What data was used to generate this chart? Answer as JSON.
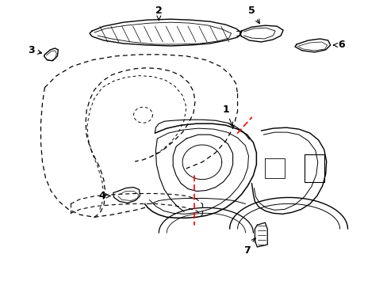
{
  "background_color": "#ffffff",
  "line_color": "#000000",
  "red_color": "#ff0000",
  "figsize": [
    4.89,
    3.6
  ],
  "dpi": 100
}
